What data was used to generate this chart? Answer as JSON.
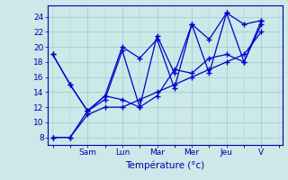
{
  "xlabel": "Température (°c)",
  "background_color": "#cce8e8",
  "grid_color": "#a0c8c8",
  "line_color": "#0000cc",
  "axis_color": "#0000aa",
  "ylim": [
    7,
    25.5
  ],
  "yticks": [
    8,
    10,
    12,
    14,
    16,
    18,
    20,
    22,
    24
  ],
  "xlim": [
    -0.15,
    6.6
  ],
  "day_labels": [
    "Sam",
    "Lun",
    "Mar",
    "Mer",
    "Jeu",
    "V"
  ],
  "day_positions": [
    1,
    2,
    3,
    4,
    5,
    6
  ],
  "series": [
    {
      "x": [
        0,
        0.5,
        1.0,
        1.5,
        2.0,
        2.5,
        3.0,
        3.5,
        4.0,
        4.5,
        5.0,
        5.5,
        6.0
      ],
      "y": [
        19,
        15,
        11.5,
        13.5,
        20,
        18.5,
        21,
        14.5,
        23,
        21,
        24.5,
        18,
        23
      ]
    },
    {
      "x": [
        0,
        0.5,
        1.0,
        1.5,
        2.0,
        2.5,
        3.0,
        3.5,
        4.0,
        4.5,
        5.0,
        5.5,
        6.0
      ],
      "y": [
        19,
        15,
        11.5,
        13,
        19.5,
        12,
        21.5,
        16.5,
        23,
        16.5,
        24.5,
        23,
        23.5
      ]
    },
    {
      "x": [
        0,
        0.5,
        1.0,
        1.5,
        2.0,
        2.5,
        3.0,
        3.5,
        4.0,
        4.5,
        5.0,
        5.5,
        6.0
      ],
      "y": [
        8,
        8,
        11.5,
        13.5,
        13,
        12,
        13.5,
        17,
        16.5,
        18.5,
        19,
        18,
        23.5
      ]
    },
    {
      "x": [
        0,
        0.5,
        1.0,
        1.5,
        2.0,
        2.5,
        3.0,
        3.5,
        4.0,
        4.5,
        5.0,
        5.5,
        6.0
      ],
      "y": [
        8,
        8,
        11,
        12,
        12,
        13,
        14,
        15,
        16,
        17,
        18,
        19,
        22
      ]
    }
  ]
}
